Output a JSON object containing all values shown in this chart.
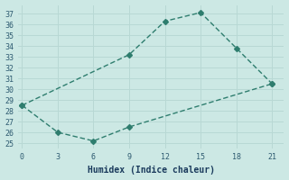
{
  "xlabel": "Humidex (Indice chaleur)",
  "line_color": "#2e7d6e",
  "background_color": "#cce8e4",
  "grid_color": "#b8d8d4",
  "x_upper": [
    0,
    9,
    12,
    15,
    18,
    21
  ],
  "y_upper": [
    28.5,
    33.2,
    36.3,
    37.1,
    33.8,
    30.5
  ],
  "x_lower": [
    0,
    3,
    6,
    9,
    21
  ],
  "y_lower": [
    28.5,
    26.0,
    25.2,
    26.5,
    30.5
  ],
  "xlim": [
    -0.3,
    22.0
  ],
  "ylim": [
    24.5,
    37.8
  ],
  "xticks": [
    0,
    3,
    6,
    9,
    12,
    15,
    18,
    21
  ],
  "yticks": [
    25,
    26,
    27,
    28,
    29,
    30,
    31,
    32,
    33,
    34,
    35,
    36,
    37
  ],
  "marker": "D",
  "markersize": 3.0,
  "linewidth": 1.0,
  "tick_color": "#2d5a70",
  "label_color": "#1a3a5c",
  "label_fontsize": 7
}
